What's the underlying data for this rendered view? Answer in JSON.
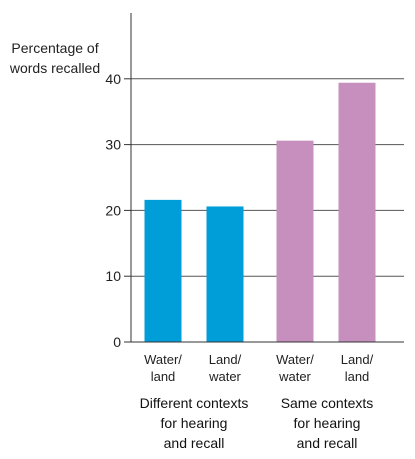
{
  "chart_data": {
    "type": "bar",
    "ylabel_lines": [
      "Percentage of",
      "words recalled"
    ],
    "ylim": [
      0,
      50
    ],
    "yticks": [
      0,
      10,
      20,
      30,
      40
    ],
    "grid": true,
    "categories": [
      {
        "lines": [
          "Water/",
          "land"
        ],
        "value": 21.6,
        "color": "#009ed8"
      },
      {
        "lines": [
          "Land/",
          "water"
        ],
        "value": 20.6,
        "color": "#009ed8"
      },
      {
        "lines": [
          "Water/",
          "water"
        ],
        "value": 30.6,
        "color": "#c68fbd"
      },
      {
        "lines": [
          "Land/",
          "land"
        ],
        "value": 39.4,
        "color": "#c68fbd"
      }
    ],
    "groups": [
      {
        "lines": [
          "Different contexts",
          "for hearing",
          "and recall"
        ],
        "color": "#009ed8"
      },
      {
        "lines": [
          "Same contexts",
          "for hearing",
          "and recall"
        ],
        "color": "#c68fbd"
      }
    ]
  }
}
